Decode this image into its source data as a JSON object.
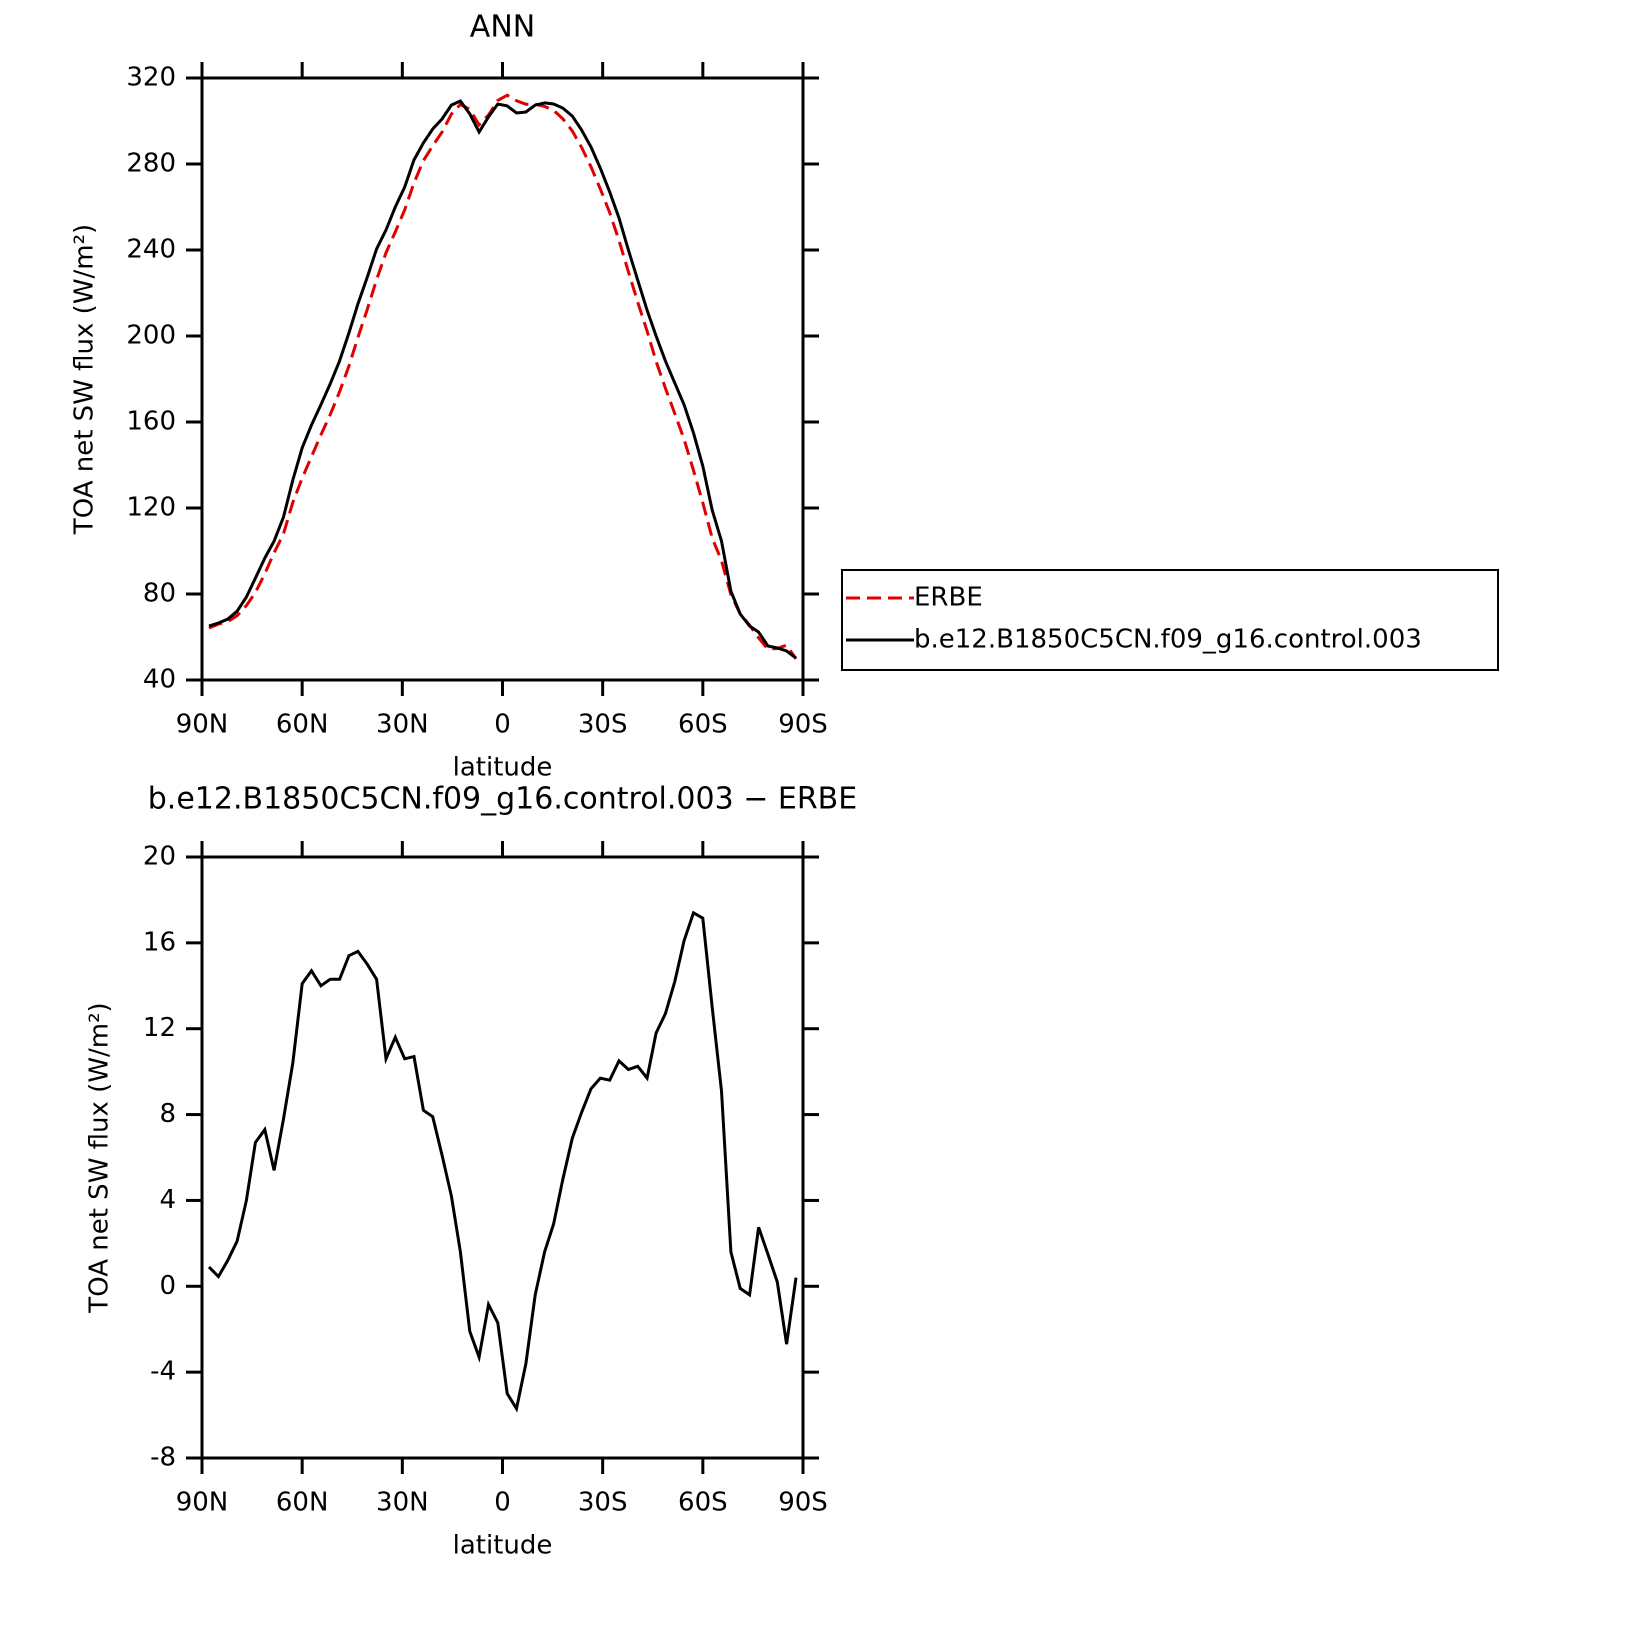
{
  "chart_data": [
    {
      "type": "line",
      "title": "ANN",
      "x_label": "latitude",
      "y_label": "TOA net SW flux (W/m²)",
      "x": [
        87.9,
        85.1,
        82.3,
        79.5,
        76.7,
        74.0,
        71.2,
        68.4,
        65.6,
        62.8,
        60.0,
        57.2,
        54.4,
        51.6,
        48.8,
        46.0,
        43.3,
        40.5,
        37.7,
        34.9,
        32.1,
        29.3,
        26.5,
        23.7,
        20.9,
        18.1,
        15.3,
        12.6,
        9.8,
        7.0,
        4.2,
        1.4,
        -1.4,
        -4.2,
        -7.0,
        -9.8,
        -12.6,
        -15.3,
        -18.1,
        -20.9,
        -23.7,
        -26.5,
        -29.3,
        -32.1,
        -34.9,
        -37.7,
        -40.5,
        -43.3,
        -46.0,
        -48.8,
        -51.6,
        -54.4,
        -57.2,
        -60.0,
        -62.8,
        -65.6,
        -68.4,
        -71.2,
        -74.0,
        -76.7,
        -79.5,
        -82.3,
        -85.1,
        -87.9
      ],
      "series": [
        {
          "name": "ERBE",
          "color": "#e00000",
          "line_style": "dashed",
          "values": [
            64.2,
            66.0,
            67.1,
            69.9,
            74.6,
            80.7,
            89.4,
            99.2,
            108,
            122.6,
            133.9,
            143.9,
            154,
            163.4,
            174.1,
            186,
            199.3,
            212.4,
            226.2,
            238.7,
            248.4,
            258.7,
            271.2,
            281.6,
            288.4,
            294.9,
            303.2,
            307.7,
            305.4,
            298.2,
            302.8,
            309.6,
            312,
            309.4,
            307.8,
            307.8,
            306.8,
            305,
            301,
            295.4,
            287.7,
            278.7,
            268.4,
            257.4,
            244.4,
            229.9,
            215.8,
            202.3,
            188.2,
            175.7,
            163.9,
            151.9,
            137.5,
            122.4,
            106,
            95.5,
            79.7,
            70.8,
            65.5,
            59.6,
            54.3,
            54.7,
            56.2,
            49.8
          ]
        },
        {
          "name": "b.e12.B1850C5CN.f09_g16.control.003",
          "color": "#000000",
          "line_style": "solid",
          "values": [
            65.1,
            66.5,
            68.3,
            72,
            78.6,
            87.4,
            96.7,
            104.6,
            115.8,
            133,
            148,
            158.6,
            168,
            177.7,
            188.4,
            201.4,
            214.9,
            227.4,
            240.5,
            249.3,
            260,
            269.3,
            281.9,
            289.8,
            296.3,
            301,
            307.4,
            309.3,
            303.3,
            294.9,
            301.9,
            307.9,
            307,
            303.7,
            304.2,
            307.4,
            308.4,
            307.9,
            306,
            302.3,
            295.8,
            287.9,
            278.1,
            267,
            254.9,
            240,
            226,
            212,
            200,
            188.4,
            178.1,
            168,
            154.9,
            139.5,
            119,
            104.6,
            81.3,
            70.7,
            65.1,
            62.3,
            55.8,
            54.9,
            53.5,
            50.2
          ]
        }
      ],
      "xlim": [
        90,
        -90
      ],
      "xticks": [
        {
          "value": 90,
          "label": "90N"
        },
        {
          "value": 60,
          "label": "60N"
        },
        {
          "value": 30,
          "label": "30N"
        },
        0,
        {
          "value": -30,
          "label": "30S"
        },
        {
          "value": -60,
          "label": "60S"
        },
        {
          "value": -90,
          "label": "90S"
        }
      ],
      "ylim": [
        40,
        320
      ],
      "yticks": [
        40,
        80,
        120,
        160,
        200,
        240,
        280,
        320
      ],
      "legend": "right"
    },
    {
      "type": "line",
      "title": "b.e12.B1850C5CN.f09_g16.control.003 − ERBE",
      "x_label": "latitude",
      "y_label": "TOA net SW flux (W/m²)",
      "x": [
        87.9,
        85.1,
        82.3,
        79.5,
        76.7,
        74.0,
        71.2,
        68.4,
        65.6,
        62.8,
        60.0,
        57.2,
        54.4,
        51.6,
        48.8,
        46.0,
        43.3,
        40.5,
        37.7,
        34.9,
        32.1,
        29.3,
        26.5,
        23.7,
        20.9,
        18.1,
        15.3,
        12.6,
        9.8,
        7.0,
        4.2,
        1.4,
        -1.4,
        -4.2,
        -7.0,
        -9.8,
        -12.6,
        -15.3,
        -18.1,
        -20.9,
        -23.7,
        -26.5,
        -29.3,
        -32.1,
        -34.9,
        -37.7,
        -40.5,
        -43.3,
        -46.0,
        -48.8,
        -51.6,
        -54.4,
        -57.2,
        -60.0,
        -62.8,
        -65.6,
        -68.4,
        -71.2,
        -74.0,
        -76.7,
        -79.5,
        -82.3,
        -85.1,
        -87.9
      ],
      "color": "#000000",
      "values": [
        0.9,
        0.45,
        1.2,
        2.1,
        4.0,
        6.7,
        7.3,
        5.4,
        7.8,
        10.4,
        14.1,
        14.7,
        14.0,
        14.3,
        14.3,
        15.4,
        15.6,
        15.0,
        14.3,
        10.6,
        11.6,
        10.6,
        10.7,
        8.2,
        7.9,
        6.1,
        4.2,
        1.6,
        -2.1,
        -3.3,
        -0.85,
        -1.7,
        -5.0,
        -5.7,
        -3.6,
        -0.4,
        1.6,
        2.9,
        5.0,
        6.9,
        8.1,
        9.2,
        9.7,
        9.6,
        10.5,
        10.1,
        10.25,
        9.7,
        11.8,
        12.7,
        14.2,
        16.1,
        17.4,
        17.15,
        13.0,
        9.1,
        1.6,
        -0.1,
        -0.4,
        2.75,
        1.5,
        0.2,
        -2.7,
        0.4
      ],
      "xlim": [
        90,
        -90
      ],
      "xticks": [
        {
          "value": 90,
          "label": "90N"
        },
        {
          "value": 60,
          "label": "60N"
        },
        {
          "value": 30,
          "label": "30N"
        },
        0,
        {
          "value": -30,
          "label": "30S"
        },
        {
          "value": -60,
          "label": "60S"
        },
        {
          "value": -90,
          "label": "90S"
        }
      ],
      "ylim": [
        -8,
        20
      ],
      "yticks": [
        -8,
        -4,
        0,
        4,
        8,
        12,
        16,
        20
      ]
    }
  ]
}
